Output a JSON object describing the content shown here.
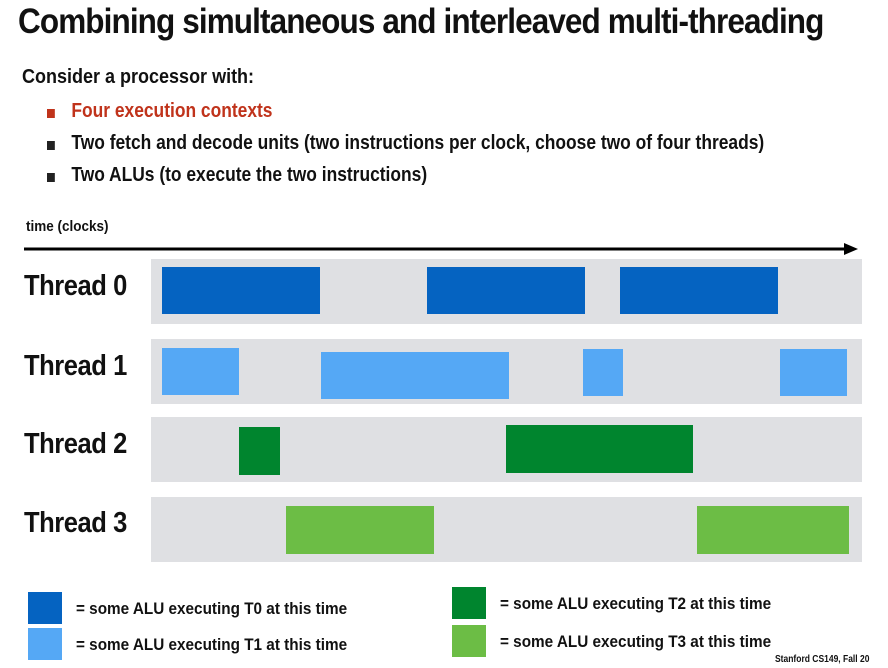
{
  "slide": {
    "title": "Combining simultaneous and interleaved multi-threading",
    "intro": "Consider a processor with:",
    "bullets": [
      "Four execution contexts",
      "Two fetch and decode units (two instructions per clock, choose two of four threads)",
      "Two ALUs (to execute the two instructions)"
    ],
    "footer": "Stanford CS149, Fall 20"
  },
  "diagram": {
    "time_label": "time (clocks)",
    "threads": [
      {
        "label": "Thread 0",
        "color": "#0563c1"
      },
      {
        "label": "Thread 1",
        "color": "#55a8f5"
      },
      {
        "label": "Thread 2",
        "color": "#00852e"
      },
      {
        "label": "Thread 3",
        "color": "#6cbd45"
      }
    ]
  },
  "legend": [
    {
      "text": "= some ALU executing T0 at this time",
      "color": "#0563c1"
    },
    {
      "text": "= some ALU executing T1 at this time",
      "color": "#55a8f5"
    },
    {
      "text": "= some ALU executing T2 at this time",
      "color": "#00852e"
    },
    {
      "text": "= some ALU executing T3 at this time",
      "color": "#6cbd45"
    }
  ]
}
